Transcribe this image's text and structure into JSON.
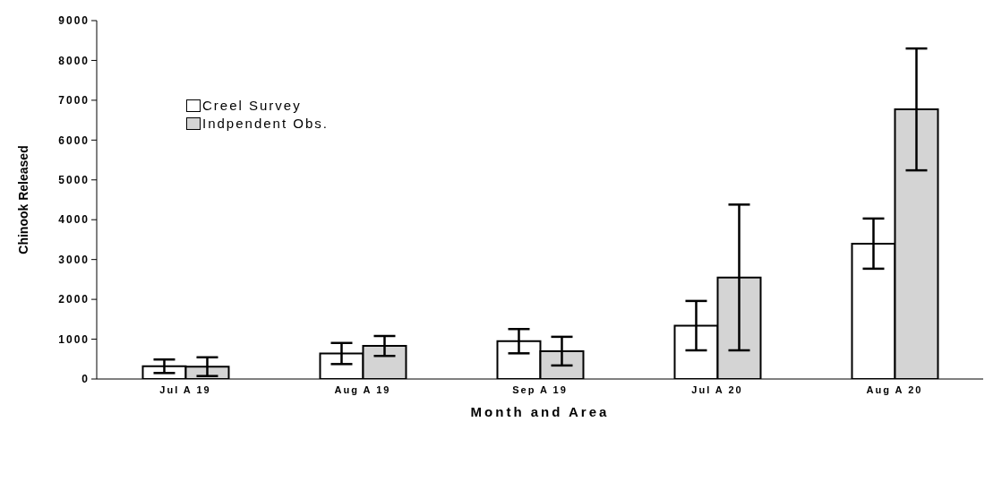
{
  "chart_data": {
    "type": "bar",
    "xlabel": "Month and Area",
    "ylabel": "Chinook Released",
    "categories": [
      "Jul A 19",
      "Aug A 19",
      "Sep A 19",
      "Jul A 20",
      "Aug A 20"
    ],
    "series": [
      {
        "name": "Creel Survey",
        "color": "#ffffff",
        "values": [
          320,
          640,
          950,
          1340,
          3400
        ],
        "errors": [
          170,
          265,
          305,
          620,
          630
        ]
      },
      {
        "name": "Indpendent Obs.",
        "color": "#d4d4d4",
        "values": [
          310,
          830,
          700,
          2550,
          6770
        ],
        "errors": [
          235,
          250,
          360,
          1830,
          1530
        ]
      }
    ],
    "ylim": [
      0,
      9000
    ],
    "yticks": [
      0,
      1000,
      2000,
      3000,
      4000,
      5000,
      6000,
      7000,
      8000,
      9000
    ],
    "grid": false,
    "legend": "top left"
  }
}
